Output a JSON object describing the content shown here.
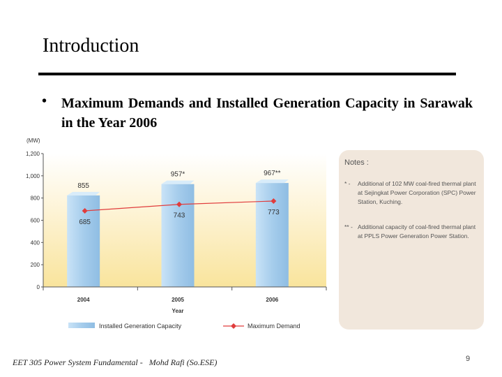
{
  "slide": {
    "title": "Introduction",
    "bullet": "•",
    "bullet_text": "Maximum Demands and Installed Generation Capacity in Sarawak in the Year 2006",
    "footer": "EET 305 Power System Fundamental -   Mohd Rafi (So.ESE)",
    "page_number": "9"
  },
  "chart_data": {
    "type": "bar",
    "title": "",
    "xlabel": "Year",
    "ylabel": "(MW)",
    "ylim": [
      0,
      1200
    ],
    "yticks": [
      "0",
      "200",
      "400",
      "600",
      "800",
      "1,000",
      "1,200"
    ],
    "categories": [
      "2004",
      "2005",
      "2006"
    ],
    "series": [
      {
        "name": "Installed Generation Capacity",
        "kind": "bar",
        "values": [
          855,
          957,
          967
        ],
        "labels": [
          "855",
          "957*",
          "967**"
        ]
      },
      {
        "name": "Maximum Demand",
        "kind": "line",
        "values": [
          685,
          743,
          773
        ],
        "labels": [
          "685",
          "743",
          "773"
        ]
      }
    ],
    "legend": [
      "Installed Generation Capacity",
      "Maximum Demand"
    ],
    "legend_position": "bottom",
    "colors": {
      "bar": "#a9d0ee",
      "line": "#e03c3c",
      "background": "#fbeec0"
    }
  },
  "notes": {
    "title": "Notes :",
    "items": [
      {
        "mark": "* -",
        "text": "Additional of 102 MW coal-fired thermal plant at Sejingkat Power Corporation (SPC) Power Station, Kuching."
      },
      {
        "mark": "** -",
        "text": "Additional capacity of coal-fired thermal plant at PPLS Power Generation Power Station."
      }
    ]
  }
}
